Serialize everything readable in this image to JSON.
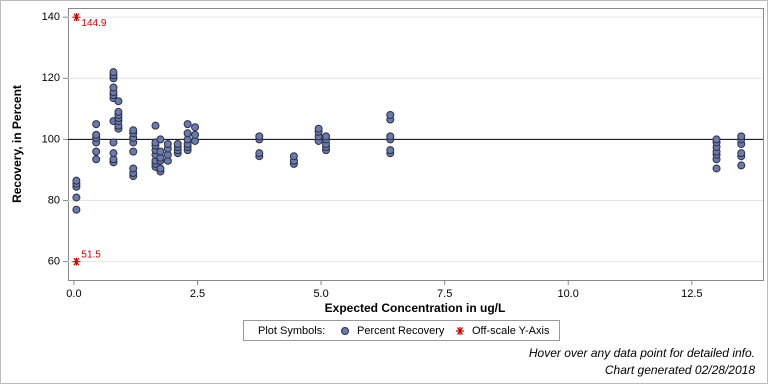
{
  "chart_data": {
    "type": "scatter",
    "y_label": "Recovery, in Percent",
    "x_label": "Expected Concentration in ug/L",
    "xlim": [
      -0.12,
      13.94
    ],
    "ylim": [
      54,
      143
    ],
    "xticks": [
      {
        "value": 0,
        "label": "0.0"
      },
      {
        "value": 2.5,
        "label": "2.5"
      },
      {
        "value": 5,
        "label": "5.0"
      },
      {
        "value": 7.5,
        "label": "7.5"
      },
      {
        "value": 10,
        "label": "10.0"
      },
      {
        "value": 12.5,
        "label": "12.5"
      }
    ],
    "yticks": [
      60,
      80,
      100,
      120,
      140
    ],
    "grid": true,
    "reference_line": 100,
    "legend_title": "Plot Symbols:",
    "series": [
      {
        "name": "Percent Recovery",
        "color": "#6a7bab",
        "x": [
          0.05,
          0.05,
          0.05,
          0.05,
          0.05,
          0.45,
          0.45,
          0.45,
          0.45,
          0.45,
          0.45,
          0.8,
          0.8,
          0.8,
          0.8,
          0.8,
          0.8,
          0.8,
          0.8,
          0.8,
          0.8,
          0.8,
          0.8,
          0.9,
          0.9,
          0.9,
          0.9,
          0.9,
          0.9,
          0.9,
          1.2,
          1.2,
          1.2,
          1.2,
          1.2,
          1.2,
          1.2,
          1.2,
          1.65,
          1.65,
          1.65,
          1.65,
          1.65,
          1.65,
          1.65,
          1.65,
          1.75,
          1.75,
          1.75,
          1.75,
          1.75,
          1.75,
          1.9,
          1.9,
          1.9,
          1.9,
          2.1,
          2.1,
          2.1,
          2.1,
          2.3,
          2.3,
          2.3,
          2.3,
          2.3,
          2.3,
          2.45,
          2.45,
          2.45,
          3.75,
          3.75,
          3.75,
          3.75,
          4.45,
          4.45,
          4.45,
          4.95,
          4.95,
          4.95,
          4.95,
          5.1,
          5.1,
          5.1,
          5.1,
          5.1,
          6.4,
          6.4,
          6.4,
          6.4,
          6.4,
          6.4,
          13,
          13,
          13,
          13,
          13,
          13,
          13,
          13.5,
          13.5,
          13.5,
          13.5,
          13.5,
          13.5
        ],
        "values": [
          77,
          81,
          84.5,
          85.5,
          86.5,
          93.5,
          96,
          99,
          100.5,
          101.5,
          105,
          92.5,
          93.5,
          95.5,
          99,
          106,
          113.5,
          114.5,
          115.5,
          117,
          120,
          121,
          122,
          103.5,
          104.5,
          106,
          107,
          108,
          109,
          112.5,
          88,
          89,
          90.5,
          96,
          99,
          100.5,
          102,
          103,
          91,
          92,
          93,
          95,
          96.5,
          98,
          99,
          104.5,
          89.5,
          90.5,
          93,
          94,
          96,
          100,
          93,
          95,
          97,
          98.5,
          95.5,
          96.5,
          97.5,
          98.5,
          96.5,
          97.5,
          98.5,
          100,
          102,
          105,
          99.5,
          101.5,
          104,
          94.5,
          95.5,
          100,
          101,
          92,
          93,
          94.5,
          99.5,
          101,
          102.5,
          103.5,
          96.5,
          97.5,
          98.5,
          100,
          101,
          95.5,
          96.5,
          100,
          101,
          106.5,
          108,
          90.5,
          93.5,
          95,
          96,
          97.5,
          99,
          100,
          91.5,
          94.5,
          95.5,
          98.5,
          100,
          101
        ]
      },
      {
        "name": "Off-scale Y-Axis",
        "color": "#cc0000",
        "offscale": true,
        "x": [
          0.05,
          0.05
        ],
        "values": [
          144.9,
          51.5
        ]
      }
    ],
    "footnotes": [
      "Hover over any data point for detailed info.",
      "Chart generated 02/28/2018"
    ]
  }
}
